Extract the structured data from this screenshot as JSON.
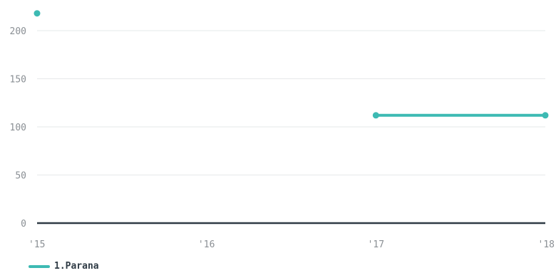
{
  "chart_data": {
    "type": "line",
    "x": [
      "'15",
      "'16",
      "'17",
      "'18"
    ],
    "y_ticks": [
      0,
      50,
      100,
      150,
      200
    ],
    "ylim": [
      0,
      200
    ],
    "grid": true,
    "legend_position": "bottom-left",
    "series": [
      {
        "name": "1.Parana",
        "color": "#3dbab3",
        "values": [
          218,
          null,
          112,
          112
        ]
      }
    ]
  }
}
